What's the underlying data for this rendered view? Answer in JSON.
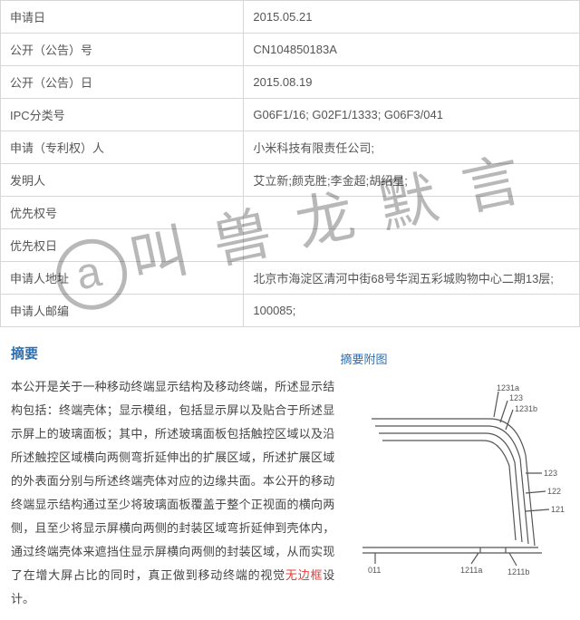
{
  "table": {
    "rows": [
      {
        "label": "申请日",
        "value": "2015.05.21"
      },
      {
        "label": "公开（公告）号",
        "value": "CN104850183A"
      },
      {
        "label": "公开（公告）日",
        "value": "2015.08.19"
      },
      {
        "label": "IPC分类号",
        "value": "G06F1/16; G02F1/1333; G06F3/041"
      },
      {
        "label": "申请（专利权）人",
        "value": "小米科技有限责任公司;"
      },
      {
        "label": "发明人",
        "value": "艾立新;颜克胜;李金超;胡绍星;"
      },
      {
        "label": "优先权号",
        "value": ""
      },
      {
        "label": "优先权日",
        "value": ""
      },
      {
        "label": "申请人地址",
        "value": "北京市海淀区清河中街68号华润五彩城购物中心二期13层;"
      },
      {
        "label": "申请人邮编",
        "value": "100085;"
      }
    ]
  },
  "abstract": {
    "title": "摘要",
    "figure_caption": "摘要附图",
    "text_parts": {
      "p1": "本公开是关于一种移动终端显示结构及移动终端，所述显示结构包括：终端壳体；显示模组，包括显示屏以及贴合于所述显示屏上的玻璃面板；其中，所述玻璃面板包括触控区域以及沿所述触控区域横向两侧弯折延伸出的扩展区域，所述扩展区域的外表面分别与所述终端壳体对应的边缘共面。本公开的移动终端显示结构通过至少将玻璃面板覆盖于整个正视面的横向两侧，且至少将显示屏横向两侧的封装区域弯折延伸到壳体内，通过终端壳体来遮挡住显示屏横向两侧的封装区域，从而实现了在增大屏占比的同时，真正做到移动终端的视觉",
      "highlight": "无边框",
      "p2": "设计。"
    }
  },
  "watermark": {
    "text": "叫 兽 龙 默 言"
  },
  "figure": {
    "labels": {
      "t1": "1231a",
      "t2": "123",
      "t3": "1231b",
      "r1": "123",
      "r2": "122",
      "r3": "121",
      "b1": "011",
      "b2": "1211a",
      "b3": "1211b"
    },
    "stroke": "#555555",
    "stroke_width": 1.2,
    "label_fontsize": 9
  },
  "colors": {
    "border": "#d6d6d6",
    "text": "#555555",
    "heading": "#2a6fb5",
    "highlight": "#e03c3c",
    "watermark": "rgba(0,0,0,0.28)"
  }
}
